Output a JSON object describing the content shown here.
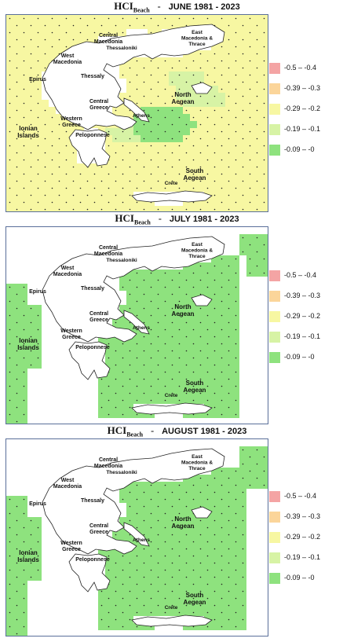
{
  "panels": [
    {
      "title_prefix": "HCI",
      "title_sub": "Beach",
      "title_sep": "-",
      "period": "JUNE 1981 - 2023"
    },
    {
      "title_prefix": "HCI",
      "title_sub": "Beach",
      "title_sep": "-",
      "period": "JULY 1981 - 2023"
    },
    {
      "title_prefix": "HCI",
      "title_sub": "Beach",
      "title_sep": "-",
      "period": "AUGUST 1981 - 2023"
    }
  ],
  "legend": [
    {
      "label": "-0.5 – -0.4",
      "color": "#f4a4a4"
    },
    {
      "label": "-0.39 – -0.3",
      "color": "#fbd59a"
    },
    {
      "label": "-0.29 – -0.2",
      "color": "#f7f7a2"
    },
    {
      "label": "-0.19 – -0.1",
      "color": "#d7f3a5"
    },
    {
      "label": "-0.09 – -0",
      "color": "#8ee27e"
    }
  ],
  "regions": [
    {
      "lines": [
        "Central",
        "Macedonia"
      ]
    },
    {
      "lines": [
        "East",
        "Macedonia &",
        "Thrace"
      ]
    },
    {
      "lines": [
        "Thessaloniki"
      ]
    },
    {
      "lines": [
        "West",
        "Macedonia"
      ]
    },
    {
      "lines": [
        "Epirus"
      ]
    },
    {
      "lines": [
        "Thessaly"
      ]
    },
    {
      "lines": [
        "North",
        "Aegean"
      ]
    },
    {
      "lines": [
        "Central",
        "Greece"
      ]
    },
    {
      "lines": [
        "Western",
        "Greece"
      ]
    },
    {
      "lines": [
        "Athens"
      ]
    },
    {
      "lines": [
        "Ionian",
        "Islands"
      ]
    },
    {
      "lines": [
        "Peloponnese"
      ]
    },
    {
      "lines": [
        "South",
        "Aegean"
      ]
    },
    {
      "lines": [
        "Crete"
      ]
    }
  ],
  "colors": {
    "land": "#ffffff",
    "coast": "#222222",
    "frame": "#5a6f9a",
    "dot": "#222222"
  },
  "map_data": [
    {
      "month": "June",
      "sea_class": "-0.29 – -0.2",
      "north_aegean_class": "-0.19 – -0.1"
    },
    {
      "month": "July",
      "sea_class": "-0.09 – -0"
    },
    {
      "month": "August",
      "sea_class": "-0.09 – -0"
    }
  ]
}
